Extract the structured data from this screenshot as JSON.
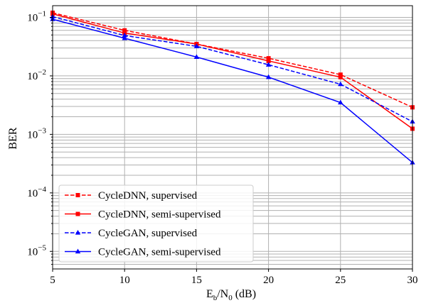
{
  "chart_data": {
    "type": "line",
    "xlabel": {
      "main": "E",
      "sub1": "b",
      "mid": "/N",
      "sub2": "0",
      "tail": " (dB)"
    },
    "ylabel": "BER",
    "xlim": [
      5,
      30
    ],
    "ylim_log10": [
      -5.3,
      -0.8
    ],
    "yscale": "log",
    "grid": true,
    "legend_position": "lower-left",
    "x_ticks": [
      5,
      10,
      15,
      20,
      25,
      30
    ],
    "x_tick_labels": [
      "5",
      "10",
      "15",
      "20",
      "25",
      "30"
    ],
    "y_ticks": [
      {
        "exp": -1,
        "base": "10",
        "sup": "−1"
      },
      {
        "exp": -2,
        "base": "10",
        "sup": "−2"
      },
      {
        "exp": -3,
        "base": "10",
        "sup": "−3"
      },
      {
        "exp": -4,
        "base": "10",
        "sup": "−4"
      },
      {
        "exp": -5,
        "base": "10",
        "sup": "−5"
      }
    ],
    "x": [
      5,
      10,
      15,
      20,
      25,
      30
    ],
    "series": [
      {
        "name": "CycleDNN, supervised",
        "color": "#ff0000",
        "dash": true,
        "marker": "square",
        "values": [
          0.12,
          0.06,
          0.035,
          0.02,
          0.0105,
          0.0029
        ]
      },
      {
        "name": "CycleDNN, semi-supervised",
        "color": "#ff0000",
        "dash": false,
        "marker": "square",
        "values": [
          0.115,
          0.054,
          0.035,
          0.018,
          0.0095,
          0.00125
        ]
      },
      {
        "name": "CycleGAN, supervised",
        "color": "#0000ff",
        "dash": true,
        "marker": "triangle",
        "values": [
          0.103,
          0.049,
          0.032,
          0.0155,
          0.0072,
          0.00165
        ]
      },
      {
        "name": "CycleGAN, semi-supervised",
        "color": "#0000ff",
        "dash": false,
        "marker": "triangle",
        "values": [
          0.093,
          0.044,
          0.021,
          0.0095,
          0.0035,
          0.00033
        ]
      }
    ]
  }
}
